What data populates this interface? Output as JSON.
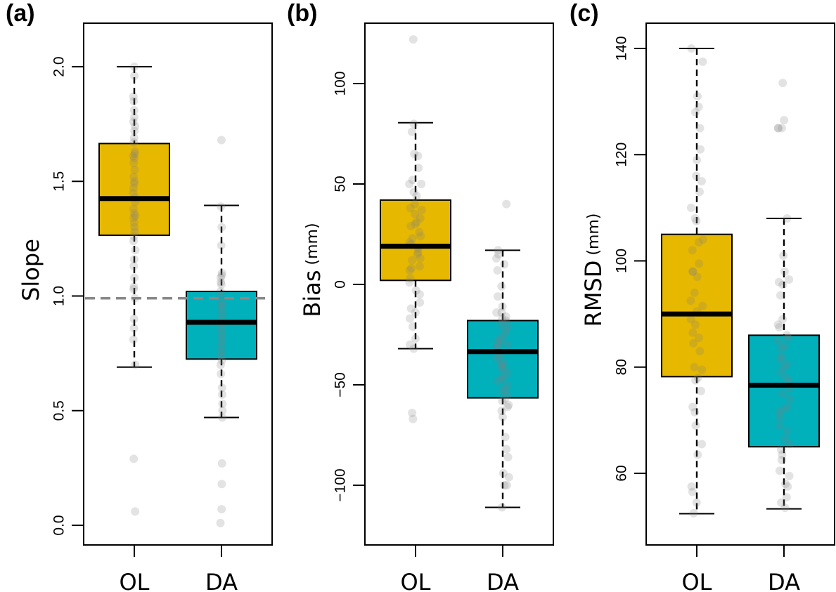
{
  "figure": {
    "colors": {
      "OL": "#e6b800",
      "DA": "#00b0bb",
      "point": "#808080",
      "reference_line": "#888888",
      "axis": "#000000"
    }
  },
  "chart_data": [
    {
      "type": "boxplot",
      "panel_label": "(a)",
      "ylabel": "Slope",
      "ylabel_unit": "",
      "categories": [
        "OL",
        "DA"
      ],
      "yticks": [
        0.0,
        0.5,
        1.0,
        1.5,
        2.0
      ],
      "ytick_labels": [
        "0.0",
        "0.5",
        "1.0",
        "1.5",
        "2.0"
      ],
      "ylim": [
        -0.13,
        2.05
      ],
      "reference_line": {
        "y": 0.99,
        "style": "dashed",
        "color": "#888888"
      },
      "boxes": [
        {
          "name": "OL",
          "whisker_low": 0.69,
          "q1": 1.265,
          "median": 1.425,
          "q3": 1.665,
          "whisker_high": 2.0,
          "points": [
            2.0,
            1.96,
            1.87,
            1.85,
            1.81,
            1.78,
            1.76,
            1.74,
            1.72,
            1.69,
            1.67,
            1.63,
            1.62,
            1.61,
            1.6,
            1.58,
            1.55,
            1.52,
            1.5,
            1.49,
            1.47,
            1.45,
            1.43,
            1.41,
            1.38,
            1.36,
            1.35,
            1.34,
            1.32,
            1.3,
            1.28,
            1.26,
            1.24,
            1.2,
            1.16,
            1.13,
            1.08,
            1.04,
            1.03,
            0.99,
            0.9,
            0.86,
            0.81,
            0.7,
            0.29,
            0.06
          ]
        },
        {
          "name": "DA",
          "whisker_low": 0.47,
          "q1": 0.725,
          "median": 0.885,
          "q3": 1.02,
          "whisker_high": 1.395,
          "points": [
            1.68,
            1.39,
            1.3,
            1.22,
            1.1,
            1.09,
            1.08,
            1.06,
            1.05,
            1.02,
            1.0,
            0.97,
            0.96,
            0.94,
            0.92,
            0.9,
            0.88,
            0.86,
            0.84,
            0.82,
            0.8,
            0.78,
            0.76,
            0.74,
            0.72,
            0.7,
            0.66,
            0.6,
            0.57,
            0.53,
            0.5,
            0.47,
            0.27,
            0.18,
            0.07,
            0.01
          ]
        }
      ]
    },
    {
      "type": "boxplot",
      "panel_label": "(b)",
      "ylabel": "Bias",
      "ylabel_unit": "(mm)",
      "categories": [
        "OL",
        "DA"
      ],
      "yticks": [
        -100,
        -50,
        0,
        50,
        100
      ],
      "ytick_labels": [
        "−100",
        "−50",
        "0",
        "50",
        "100"
      ],
      "ylim": [
        -129,
        124
      ],
      "boxes": [
        {
          "name": "OL",
          "whisker_low": -32,
          "q1": 2,
          "median": 19,
          "q3": 42,
          "whisker_high": 80.5,
          "points": [
            122,
            80,
            76,
            65,
            64,
            58,
            52,
            50,
            50,
            46,
            44,
            40,
            38,
            37,
            35,
            33,
            31,
            30,
            29,
            26,
            24,
            23,
            21,
            20,
            18,
            16,
            15,
            13,
            12,
            9,
            8,
            7,
            3,
            1,
            -3,
            -5,
            -9,
            -12,
            -14,
            -17,
            -21,
            -27,
            -30,
            -32,
            -64,
            -67
          ]
        },
        {
          "name": "DA",
          "whisker_low": -111,
          "q1": -56.5,
          "median": -33.5,
          "q3": -18,
          "whisker_high": 17,
          "points": [
            40,
            17,
            15,
            13,
            10,
            7,
            -1,
            -6,
            -11,
            -14,
            -14,
            -16,
            -17,
            -18,
            -20,
            -21,
            -23,
            -25,
            -27,
            -28,
            -29,
            -30,
            -31,
            -32,
            -34,
            -36,
            -37,
            -39,
            -40,
            -41,
            -42,
            -44,
            -46,
            -47,
            -48,
            -50,
            -52,
            -53,
            -55,
            -57,
            -58,
            -60,
            -61,
            -63,
            -66,
            -76,
            -82,
            -86,
            -94,
            -96,
            -100,
            -100,
            -111
          ]
        }
      ]
    },
    {
      "type": "boxplot",
      "panel_label": "(c)",
      "ylabel": "RMSD",
      "ylabel_unit": "(mm)",
      "categories": [
        "OL",
        "DA"
      ],
      "yticks": [
        60,
        80,
        100,
        120,
        140
      ],
      "ytick_labels": [
        "60",
        "80",
        "100",
        "120",
        "140"
      ],
      "ylim": [
        49,
        145
      ],
      "boxes": [
        {
          "name": "OL",
          "whisker_low": 52.4,
          "q1": 78.2,
          "median": 90,
          "q3": 105,
          "whisker_high": 140,
          "points": [
            140,
            137.5,
            131,
            129,
            128,
            125,
            121,
            119,
            116,
            115,
            113,
            110,
            108,
            107.5,
            104,
            103.5,
            102,
            99.5,
            98,
            98,
            97,
            94,
            92.5,
            91.5,
            90.5,
            89,
            88,
            86.5,
            85.5,
            84.5,
            83,
            80,
            79.5,
            78,
            77.5,
            75.5,
            72.5,
            71.5,
            69,
            65.5,
            63.5,
            57.5,
            56.5,
            54.5,
            52.5
          ]
        },
        {
          "name": "DA",
          "whisker_low": 53.3,
          "q1": 65,
          "median": 76.6,
          "q3": 86,
          "whisker_high": 108,
          "points": [
            133.5,
            126.5,
            125,
            125,
            125,
            108,
            101,
            98,
            96.5,
            96,
            95.5,
            93.5,
            89,
            88,
            87.5,
            86,
            85.5,
            85,
            84,
            83.5,
            82,
            81.5,
            80.5,
            80,
            79,
            78,
            77.5,
            76,
            75,
            74,
            72.5,
            72,
            71.5,
            70.5,
            69,
            68,
            66.5,
            65.5,
            64.5,
            63.5,
            62.5,
            60.5,
            59.5,
            58,
            57.5,
            55.5,
            54.5,
            53.5
          ]
        }
      ]
    }
  ]
}
